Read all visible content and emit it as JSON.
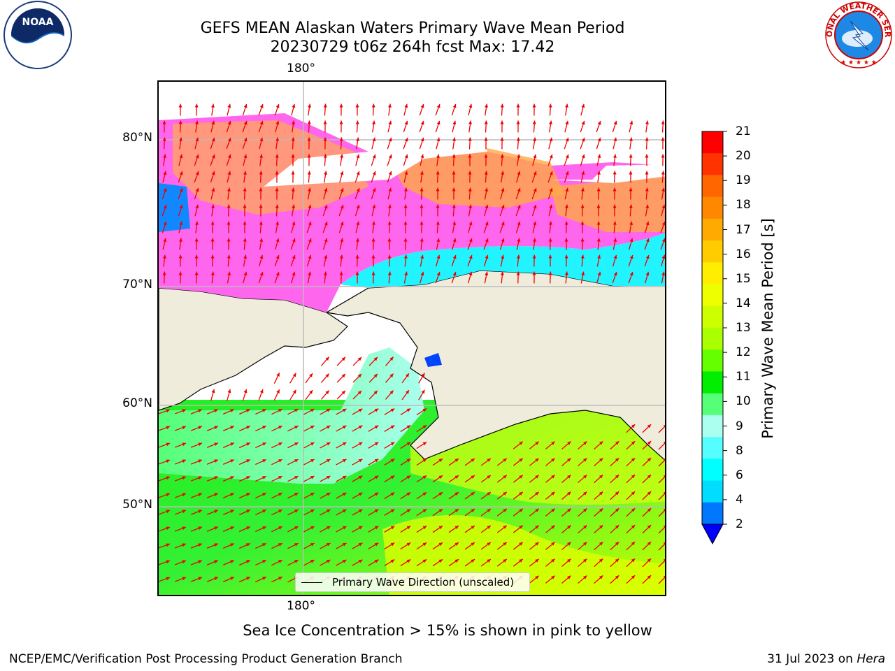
{
  "title": {
    "line1": "GEFS MEAN Alaskan Waters Primary Wave Mean Period",
    "line2": "20230729 t06z 264h fcst   Max: 17.42"
  },
  "axes": {
    "lon_top": "180°",
    "lon_bottom": "180°",
    "lat_labels": [
      "80°N",
      "70°N",
      "60°N",
      "50°N"
    ]
  },
  "legend": {
    "label": "Primary Wave Direction (unscaled)"
  },
  "colorbar": {
    "label": "Primary Wave Mean Period [s]",
    "ticks": [
      "21",
      "20",
      "19",
      "18",
      "17",
      "16",
      "15",
      "14",
      "13",
      "12",
      "11",
      "10",
      "9",
      "8",
      "6",
      "4",
      "2"
    ],
    "colors": [
      "#ff0000",
      "#ff3300",
      "#ff6600",
      "#ff8800",
      "#ffaa00",
      "#ffcc00",
      "#ffee00",
      "#eeff00",
      "#ccff00",
      "#aaff00",
      "#66ff00",
      "#00ee00",
      "#55ff77",
      "#aaffee",
      "#55ffff",
      "#00ffff",
      "#00ddff",
      "#0077ff"
    ],
    "underflow_color": "#0000ff"
  },
  "caption": "Sea Ice Concentration > 15% is shown in pink to yellow",
  "footer": {
    "left": "NCEP/EMC/Verification Post Processing Product Generation Branch",
    "date": "31 Jul 2023 on",
    "machine": "Hera"
  },
  "logos": {
    "noaa_text": "NOAA",
    "nws_text": "NATIONAL WEATHER SERVICE"
  },
  "map_colors": {
    "land": "#efecdc",
    "arrow": "#ee0000",
    "grid": "#bbbbbb"
  }
}
